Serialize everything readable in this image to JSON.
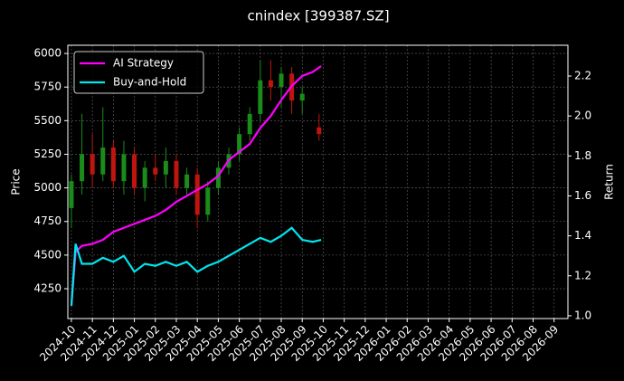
{
  "chart_data": {
    "type": "candlestick",
    "title": "cnindex [399387.SZ]",
    "ylabel": "Price",
    "y2label": "Return",
    "xlim": [
      -0.17,
      23.66
    ],
    "xticks": [
      {
        "value": 0,
        "label": "2024-10"
      },
      {
        "value": 1,
        "label": "2024-11"
      },
      {
        "value": 2,
        "label": "2024-12"
      },
      {
        "value": 3,
        "label": "2025-01"
      },
      {
        "value": 4,
        "label": "2025-02"
      },
      {
        "value": 5,
        "label": "2025-03"
      },
      {
        "value": 6,
        "label": "2025-04"
      },
      {
        "value": 7,
        "label": "2025-05"
      },
      {
        "value": 8,
        "label": "2025-06"
      },
      {
        "value": 9,
        "label": "2025-07"
      },
      {
        "value": 10,
        "label": "2025-08"
      },
      {
        "value": 11,
        "label": "2025-09"
      },
      {
        "value": 12,
        "label": "2025-10"
      },
      {
        "value": 13,
        "label": "2025-11"
      },
      {
        "value": 14,
        "label": "2025-12"
      },
      {
        "value": 15,
        "label": "2026-01"
      },
      {
        "value": 16,
        "label": "2026-02"
      },
      {
        "value": 17,
        "label": "2026-03"
      },
      {
        "value": 18,
        "label": "2026-04"
      },
      {
        "value": 19,
        "label": "2026-05"
      },
      {
        "value": 20,
        "label": "2026-06"
      },
      {
        "value": 21,
        "label": "2026-07"
      },
      {
        "value": 22,
        "label": "2026-08"
      },
      {
        "value": 23,
        "label": "2026-09"
      }
    ],
    "ylim": [
      4028,
      6061
    ],
    "yticks": [
      4250,
      4500,
      4750,
      5000,
      5250,
      5500,
      5750,
      6000
    ],
    "y2lim": [
      0.986,
      2.354
    ],
    "y2ticks": [
      {
        "value": 1,
        "label": "1.0"
      },
      1.2,
      1.4,
      1.6,
      1.8,
      {
        "value": 2,
        "label": "2.0"
      },
      2.2
    ],
    "grid": true,
    "legend": "upper left",
    "up_color": "#1a8c1a",
    "down_color": "#c0150f",
    "candles": {
      "x": [
        0,
        0.5,
        1,
        1.5,
        2,
        2.5,
        3,
        3.5,
        4,
        4.5,
        5,
        5.5,
        6,
        6.5,
        7,
        7.5,
        8,
        8.5,
        9,
        9.5,
        10,
        10.5,
        11,
        11.8
      ],
      "open": [
        4850,
        5050,
        5250,
        5100,
        5300,
        5050,
        5250,
        5000,
        5150,
        5100,
        5200,
        5000,
        5100,
        4800,
        5000,
        5150,
        5250,
        5400,
        5550,
        5800,
        5750,
        5850,
        5650,
        5450
      ],
      "high": [
        5100,
        5550,
        5400,
        5600,
        5350,
        5350,
        5300,
        5200,
        5250,
        5300,
        5250,
        5150,
        5150,
        5050,
        5200,
        5300,
        5450,
        5600,
        5950,
        5950,
        5900,
        5900,
        5750,
        5550
      ],
      "low": [
        4700,
        4950,
        5000,
        5050,
        5000,
        4950,
        4950,
        4900,
        5050,
        5000,
        4950,
        4950,
        4700,
        4750,
        4950,
        5100,
        5200,
        5350,
        5500,
        5650,
        5600,
        5550,
        5550,
        5350
      ],
      "close": [
        5050,
        5250,
        5100,
        5300,
        5050,
        5250,
        5000,
        5150,
        5100,
        5200,
        5000,
        5100,
        4800,
        5000,
        5150,
        5250,
        5400,
        5550,
        5800,
        5750,
        5850,
        5650,
        5700,
        5400
      ]
    },
    "series": [
      {
        "name": "AI Strategy",
        "color": "#ff00ff",
        "axis": "y2",
        "x": [
          0,
          0.2,
          0.5,
          1,
          1.5,
          2,
          2.5,
          3,
          3.5,
          4,
          4.5,
          5,
          5.5,
          6,
          6.5,
          7,
          7.5,
          8,
          8.5,
          9,
          9.5,
          10,
          10.5,
          11,
          11.5,
          11.9
        ],
        "values": [
          1.05,
          1.32,
          1.35,
          1.36,
          1.38,
          1.42,
          1.44,
          1.46,
          1.48,
          1.5,
          1.53,
          1.57,
          1.6,
          1.63,
          1.66,
          1.7,
          1.78,
          1.82,
          1.86,
          1.94,
          2.0,
          2.08,
          2.15,
          2.2,
          2.22,
          2.25
        ]
      },
      {
        "name": "Buy-and-Hold",
        "color": "#00e5ee",
        "axis": "y2",
        "x": [
          0,
          0.2,
          0.5,
          1,
          1.5,
          2,
          2.5,
          3,
          3.5,
          4,
          4.5,
          5,
          5.5,
          6,
          6.5,
          7,
          7.5,
          8,
          8.5,
          9,
          9.5,
          10,
          10.5,
          11,
          11.5,
          11.9
        ],
        "values": [
          1.05,
          1.36,
          1.26,
          1.26,
          1.29,
          1.27,
          1.3,
          1.22,
          1.26,
          1.25,
          1.27,
          1.25,
          1.27,
          1.22,
          1.25,
          1.27,
          1.3,
          1.33,
          1.36,
          1.39,
          1.37,
          1.4,
          1.44,
          1.38,
          1.37,
          1.38
        ]
      }
    ]
  }
}
